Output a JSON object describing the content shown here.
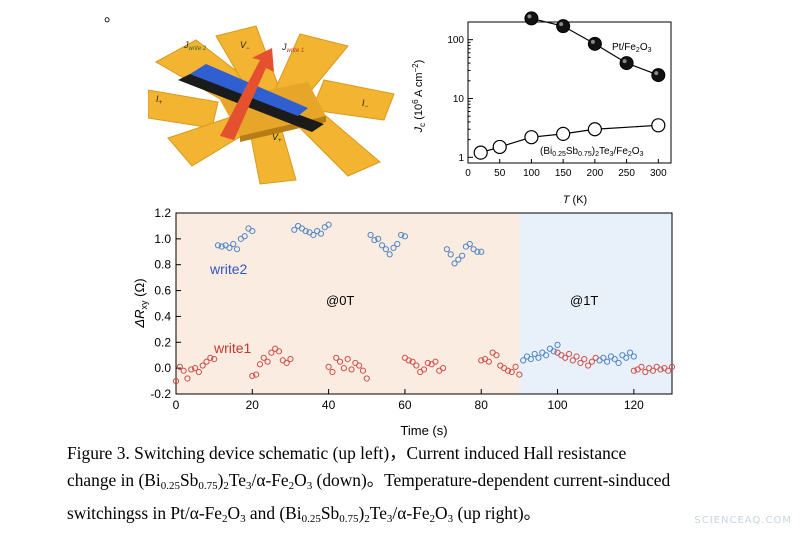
{
  "top_mark": "。",
  "schematic": {
    "labels": {
      "jwrite2_main": "J",
      "jwrite2_sub": "write 2",
      "jwrite1_main": "J",
      "jwrite1_sub": "write 1",
      "v_minus_main": "V",
      "v_minus_sub": "−",
      "v_plus_main": "V",
      "v_plus_sub": "+",
      "i_plus_main": "I",
      "i_plus_sub": "+",
      "i_minus_main": "I",
      "i_minus_sub": "−"
    },
    "colors": {
      "gold": "#f2b431",
      "blue": "#2f5fd0",
      "red": "#e5512e",
      "dark": "#1b1b1b"
    }
  },
  "chart_data": [
    {
      "type": "scatter",
      "xlabel_italic": "T",
      "xlabel_rest": " (K)",
      "ylabel_italic": "J",
      "ylabel_sub": "c",
      "ylabel_rest": " (10",
      "ylabel_sup": "6",
      "ylabel_unit": " A cm",
      "ylabel_unit_sup": "−2",
      "ylabel_close": ")",
      "yscale": "log",
      "xlim": [
        0,
        320
      ],
      "ylim": [
        0.8,
        200
      ],
      "xticks": [
        "0",
        "50",
        "100",
        "150",
        "200",
        "250",
        "300"
      ],
      "yticks": [
        "1",
        "10",
        "100"
      ],
      "series": [
        {
          "label_parts": [
            "Pt/Fe",
            "2",
            "O",
            "3"
          ],
          "marker": "filled",
          "x": [
            100,
            150,
            200,
            250,
            300
          ],
          "y": [
            230,
            170,
            85,
            40,
            25
          ]
        },
        {
          "label_parts": [
            "(Bi",
            "0.25",
            "Sb",
            "0.75",
            ")",
            "2",
            "Te",
            "3",
            "/Fe",
            "2",
            "O",
            "3"
          ],
          "marker": "open",
          "x": [
            20,
            50,
            100,
            150,
            200,
            300
          ],
          "y": [
            1.2,
            1.5,
            2.2,
            2.5,
            3.0,
            3.5
          ]
        }
      ]
    },
    {
      "type": "scatter",
      "xlabel": "Time (s)",
      "ylabel_main": "ΔR",
      "ylabel_sub": "xy",
      "ylabel_rest": " (Ω)",
      "xlim": [
        0,
        130
      ],
      "ylim": [
        -0.2,
        1.2
      ],
      "xticks": [
        "0",
        "20",
        "40",
        "60",
        "80",
        "100",
        "120"
      ],
      "yticks": [
        "-0.2",
        "0.0",
        "0.2",
        "0.4",
        "0.6",
        "0.8",
        "1.0",
        "1.2"
      ],
      "regions": [
        {
          "x_start": 0,
          "x_end": 90,
          "label": "@0T",
          "color": "#fbece1"
        },
        {
          "x_start": 90,
          "x_end": 130,
          "label": "@1T",
          "color": "#e8f0f9"
        }
      ],
      "series": [
        {
          "name": "write2",
          "color": "#4f86c6",
          "x": [
            11,
            12,
            13,
            14,
            15,
            16,
            17,
            18,
            19,
            20,
            31,
            32,
            33,
            34,
            35,
            36,
            37,
            38,
            39,
            40,
            51,
            52,
            53,
            54,
            55,
            56,
            57,
            58,
            59,
            60,
            71,
            72,
            73,
            74,
            75,
            76,
            77,
            78,
            79,
            80,
            91,
            92,
            93,
            94,
            95,
            96,
            97,
            98,
            99,
            100,
            111,
            112,
            113,
            114,
            115,
            116,
            117,
            118,
            119,
            120
          ],
          "y": [
            0.95,
            0.94,
            0.95,
            0.93,
            0.96,
            0.92,
            1.0,
            1.02,
            1.08,
            1.06,
            1.07,
            1.1,
            1.08,
            1.06,
            1.05,
            1.03,
            1.06,
            1.04,
            1.09,
            1.11,
            1.03,
            0.99,
            1.0,
            0.95,
            0.92,
            0.88,
            0.93,
            0.96,
            1.03,
            1.02,
            0.92,
            0.88,
            0.81,
            0.84,
            0.87,
            0.94,
            0.96,
            0.92,
            0.9,
            0.9,
            0.06,
            0.09,
            0.07,
            0.11,
            0.08,
            0.12,
            0.1,
            0.15,
            0.13,
            0.18,
            0.06,
            0.08,
            0.05,
            0.09,
            0.07,
            0.04,
            0.1,
            0.08,
            0.12,
            0.09
          ]
        },
        {
          "name": "write1",
          "color": "#d0504a",
          "x": [
            0,
            1,
            2,
            3,
            4,
            5,
            6,
            7,
            8,
            9,
            10,
            20,
            21,
            22,
            23,
            24,
            25,
            26,
            27,
            28,
            29,
            30,
            40,
            41,
            42,
            43,
            44,
            45,
            46,
            47,
            48,
            49,
            50,
            60,
            61,
            62,
            63,
            64,
            65,
            66,
            67,
            68,
            69,
            70,
            80,
            81,
            82,
            83,
            84,
            85,
            86,
            87,
            88,
            89,
            90,
            100,
            101,
            102,
            103,
            104,
            105,
            106,
            107,
            108,
            109,
            110,
            120,
            121,
            122,
            123,
            124,
            125,
            126,
            127,
            128,
            129,
            130
          ],
          "y": [
            -0.1,
            0.01,
            -0.02,
            -0.08,
            -0.01,
            0.0,
            -0.03,
            0.02,
            0.05,
            0.08,
            0.07,
            -0.06,
            -0.05,
            0.03,
            0.08,
            0.05,
            0.12,
            0.15,
            0.13,
            0.06,
            0.04,
            0.07,
            0.01,
            -0.03,
            0.08,
            0.05,
            0.0,
            0.07,
            -0.01,
            0.04,
            0.02,
            -0.02,
            -0.08,
            0.08,
            0.06,
            0.05,
            0.02,
            -0.03,
            -0.01,
            0.04,
            0.03,
            0.05,
            -0.02,
            0.0,
            0.06,
            0.07,
            0.05,
            0.12,
            0.1,
            0.02,
            0.0,
            -0.02,
            -0.03,
            0.01,
            -0.05,
            0.12,
            0.1,
            0.08,
            0.11,
            0.06,
            0.09,
            0.04,
            0.07,
            0.02,
            0.05,
            0.08,
            -0.02,
            -0.01,
            0.01,
            -0.03,
            0.0,
            -0.02,
            0.01,
            -0.01,
            0.0,
            -0.02,
            0.01
          ]
        }
      ]
    }
  ],
  "caption": {
    "l1_a": "Figure 3. Switching device schematic (up left)，Current induced Hall resistance",
    "l2_a": "change in (Bi",
    "l2_s1": "0.25",
    "l2_b": "Sb",
    "l2_s2": "0.75",
    "l2_c": ")",
    "l2_s3": "2",
    "l2_d": "Te",
    "l2_s4": "3",
    "l2_e": "/α-Fe",
    "l2_s5": "2",
    "l2_f": "O",
    "l2_s6": "3",
    "l2_g": " (down)。Temperature-dependent current-sinduced",
    "l3_a": "switchingss in Pt/α-Fe",
    "l3_s1": "2",
    "l3_b": "O",
    "l3_s2": "3",
    "l3_c": " and (Bi",
    "l3_s3": "0.25",
    "l3_d": "Sb",
    "l3_s4": "0.75",
    "l3_e": ")",
    "l3_s5": "2",
    "l3_f": "Te",
    "l3_s6": "3",
    "l3_g": "/α-Fe",
    "l3_s7": "2",
    "l3_h": "O",
    "l3_s8": "3",
    "l3_i": " (up right)。"
  },
  "watermark": "SCIENCEAQ.COM"
}
